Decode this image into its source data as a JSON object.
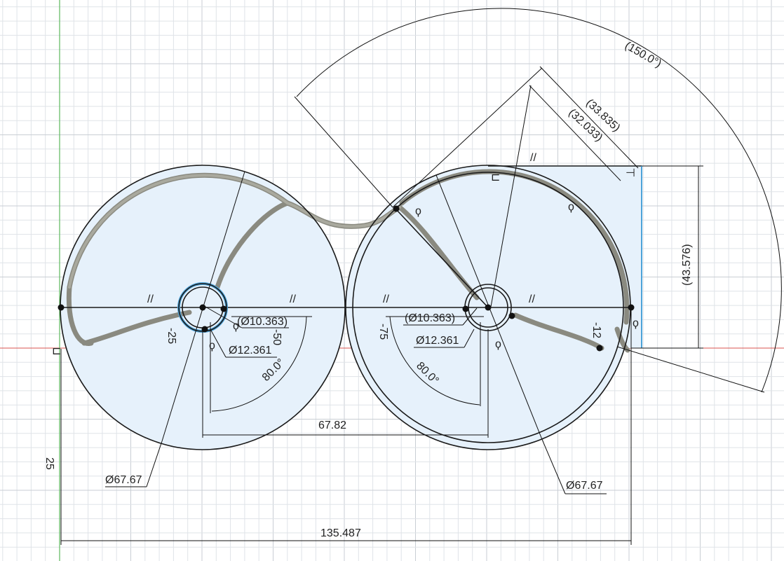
{
  "colors": {
    "background": "#ffffff",
    "profile_fill": "#e6f1fb",
    "sketch_line": "#1a1a1a",
    "slot_body": "#8a8a80",
    "selected_circle": "#4da3d9",
    "x_axis": "#d9534f",
    "y_axis": "#5cb85c",
    "grid_fine": "#dfe3e8",
    "grid_coarse": "#c9ced4"
  },
  "dimensions": {
    "left_diameter": "Ø67.67",
    "right_diameter": "Ø67.67",
    "center_distance": "67.82",
    "overall_width": "135.487",
    "vertical_offset": "25",
    "left_hub_inner": "(Ø10.363)",
    "left_hub_outer": "Ø12.361",
    "right_hub_inner": "(Ø10.363)",
    "right_hub_outer": "Ø12.361",
    "left_angle": "80.0°",
    "right_angle": "80.0°",
    "sweep_angle": "(150.0°)",
    "diag_outer": "(33.835)",
    "diag_inner": "(32.033)",
    "height": "(43.576)",
    "offset_left_a": "-25",
    "offset_left_b": "-50",
    "offset_right_a": "-75",
    "offset_right_b": "-12"
  },
  "constraints": {
    "parallel": "//",
    "tangent": "ϙ",
    "horizontal": "⊏",
    "fix": "⊣"
  }
}
